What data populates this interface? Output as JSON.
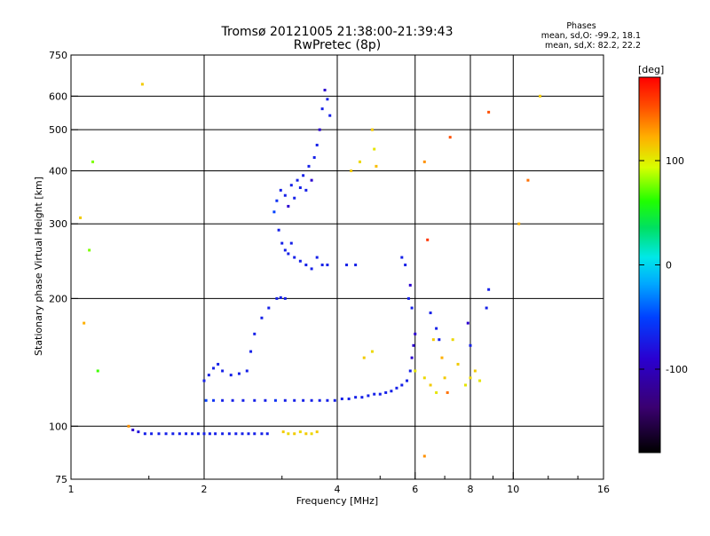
{
  "chart_data": {
    "type": "scatter",
    "title": "Tromsø 20121005 21:38:00-21:39:43",
    "subtitle": "RwPretec (8p)",
    "xlabel": "Frequency [MHz]",
    "ylabel": "Stationary phase Virtual Height [km]",
    "x_scale": "log",
    "y_scale": "log",
    "xlim": [
      1,
      16
    ],
    "ylim": [
      75,
      750
    ],
    "x_ticks": [
      "1",
      "2",
      "4",
      "6",
      "8",
      "10",
      "16"
    ],
    "x_tick_values": [
      1,
      2,
      4,
      6,
      8,
      10,
      16
    ],
    "y_ticks": [
      "75",
      "100",
      "200",
      "300",
      "400",
      "500",
      "600",
      "750"
    ],
    "y_tick_values": [
      75,
      100,
      200,
      300,
      400,
      500,
      600,
      750
    ],
    "grid": true,
    "info_panel": {
      "title": "Phases",
      "line1": "mean, sd,O: -99.2, 18.1",
      "line2": "mean, sd,X: 82.2, 22.2"
    },
    "colorbar": {
      "label": "[deg]",
      "min": -180,
      "max": 180,
      "ticks": [
        "100",
        "0",
        "-100"
      ],
      "tick_values": [
        100,
        0,
        -100
      ],
      "colormap": "rainbow: black-purple-blue-cyan-green-yellow-orange-red"
    },
    "series": [
      {
        "mode": "O",
        "points": [
          [
            1.38,
            98,
            -110
          ],
          [
            1.42,
            97,
            -105
          ],
          [
            1.47,
            96,
            -100
          ],
          [
            1.52,
            96,
            -100
          ],
          [
            1.58,
            96,
            -100
          ],
          [
            1.64,
            96,
            -100
          ],
          [
            1.7,
            96,
            -100
          ],
          [
            1.76,
            96,
            -100
          ],
          [
            1.82,
            96,
            -100
          ],
          [
            1.88,
            96,
            -100
          ],
          [
            1.94,
            96,
            -100
          ],
          [
            2.0,
            96,
            -100
          ],
          [
            2.06,
            96,
            -100
          ],
          [
            2.12,
            96,
            -100
          ],
          [
            2.2,
            96,
            -100
          ],
          [
            2.28,
            96,
            -100
          ],
          [
            2.36,
            96,
            -100
          ],
          [
            2.44,
            96,
            -100
          ],
          [
            2.52,
            96,
            -100
          ],
          [
            2.6,
            96,
            -100
          ],
          [
            2.7,
            96,
            -100
          ],
          [
            2.78,
            96,
            -100
          ],
          [
            2.02,
            115,
            -90
          ],
          [
            2.1,
            115,
            -95
          ],
          [
            2.2,
            115,
            -100
          ],
          [
            2.32,
            115,
            -100
          ],
          [
            2.45,
            115,
            -100
          ],
          [
            2.6,
            115,
            -100
          ],
          [
            2.75,
            115,
            -100
          ],
          [
            2.9,
            115,
            -95
          ],
          [
            3.05,
            115,
            -100
          ],
          [
            3.2,
            115,
            -100
          ],
          [
            3.35,
            115,
            -100
          ],
          [
            3.5,
            115,
            -100
          ],
          [
            3.65,
            115,
            -100
          ],
          [
            3.8,
            115,
            -100
          ],
          [
            3.95,
            115,
            -100
          ],
          [
            4.1,
            116,
            -100
          ],
          [
            4.25,
            116,
            -100
          ],
          [
            4.4,
            117,
            -100
          ],
          [
            4.55,
            117,
            -100
          ],
          [
            4.7,
            118,
            -100
          ],
          [
            4.85,
            119,
            -100
          ],
          [
            5.0,
            119,
            -100
          ],
          [
            5.15,
            120,
            -100
          ],
          [
            5.3,
            121,
            -100
          ],
          [
            5.45,
            123,
            -100
          ],
          [
            5.6,
            125,
            -100
          ],
          [
            5.75,
            128,
            -100
          ],
          [
            5.85,
            135,
            -100
          ],
          [
            5.9,
            145,
            -110
          ],
          [
            5.95,
            155,
            -110
          ],
          [
            6.0,
            165,
            -110
          ],
          [
            2.0,
            128,
            -100
          ],
          [
            2.05,
            132,
            -100
          ],
          [
            2.1,
            137,
            -100
          ],
          [
            2.15,
            140,
            -100
          ],
          [
            2.2,
            135,
            -100
          ],
          [
            2.3,
            132,
            -100
          ],
          [
            2.4,
            133,
            -100
          ],
          [
            2.5,
            135,
            -100
          ],
          [
            2.55,
            150,
            -100
          ],
          [
            2.6,
            165,
            -100
          ],
          [
            2.7,
            180,
            -100
          ],
          [
            2.8,
            190,
            -100
          ],
          [
            2.92,
            200,
            -100
          ],
          [
            2.98,
            201,
            -100
          ],
          [
            3.05,
            200,
            -100
          ],
          [
            2.88,
            320,
            -90
          ],
          [
            2.92,
            340,
            -95
          ],
          [
            2.98,
            360,
            -100
          ],
          [
            3.05,
            350,
            -100
          ],
          [
            3.1,
            330,
            -110
          ],
          [
            3.15,
            370,
            -100
          ],
          [
            3.2,
            345,
            -100
          ],
          [
            3.25,
            380,
            -100
          ],
          [
            3.3,
            365,
            -100
          ],
          [
            3.35,
            390,
            -100
          ],
          [
            3.4,
            360,
            -100
          ],
          [
            3.45,
            410,
            -100
          ],
          [
            3.5,
            380,
            -110
          ],
          [
            3.55,
            430,
            -100
          ],
          [
            3.6,
            460,
            -100
          ],
          [
            3.65,
            500,
            -110
          ],
          [
            3.7,
            560,
            -100
          ],
          [
            3.75,
            620,
            -110
          ],
          [
            3.8,
            590,
            -100
          ],
          [
            3.85,
            540,
            -100
          ],
          [
            2.95,
            290,
            -100
          ],
          [
            3.0,
            270,
            -100
          ],
          [
            3.05,
            260,
            -100
          ],
          [
            3.1,
            255,
            -100
          ],
          [
            3.15,
            270,
            -100
          ],
          [
            3.2,
            250,
            -100
          ],
          [
            3.3,
            245,
            -100
          ],
          [
            3.4,
            240,
            -100
          ],
          [
            3.5,
            235,
            -100
          ],
          [
            3.6,
            250,
            -100
          ],
          [
            3.7,
            240,
            -100
          ],
          [
            3.8,
            240,
            -100
          ],
          [
            4.2,
            240,
            -100
          ],
          [
            4.4,
            240,
            -100
          ],
          [
            5.6,
            250,
            -100
          ],
          [
            5.7,
            240,
            -100
          ],
          [
            5.8,
            200,
            -100
          ],
          [
            5.85,
            215,
            -110
          ],
          [
            5.9,
            190,
            -100
          ],
          [
            6.5,
            185,
            -100
          ],
          [
            6.7,
            170,
            -100
          ],
          [
            6.8,
            160,
            -100
          ],
          [
            7.9,
            175,
            -110
          ],
          [
            8.0,
            155,
            -100
          ],
          [
            8.7,
            190,
            -100
          ],
          [
            8.8,
            210,
            -100
          ]
        ]
      },
      {
        "mode": "X",
        "points": [
          [
            3.02,
            97,
            110
          ],
          [
            3.1,
            96,
            105
          ],
          [
            3.2,
            96,
            110
          ],
          [
            3.3,
            97,
            105
          ],
          [
            3.4,
            96,
            110
          ],
          [
            3.5,
            96,
            105
          ],
          [
            3.6,
            97,
            110
          ],
          [
            4.3,
            400,
            110
          ],
          [
            4.5,
            420,
            105
          ],
          [
            4.8,
            500,
            110
          ],
          [
            4.85,
            450,
            100
          ],
          [
            4.9,
            410,
            115
          ],
          [
            4.6,
            145,
            110
          ],
          [
            4.8,
            150,
            105
          ],
          [
            6.0,
            135,
            100
          ],
          [
            6.3,
            130,
            105
          ],
          [
            6.5,
            125,
            110
          ],
          [
            6.7,
            120,
            100
          ],
          [
            7.0,
            130,
            110
          ],
          [
            7.3,
            160,
            105
          ],
          [
            7.5,
            140,
            110
          ],
          [
            7.8,
            125,
            100
          ],
          [
            8.0,
            130,
            105
          ],
          [
            8.2,
            135,
            110
          ],
          [
            8.4,
            128,
            100
          ],
          [
            6.9,
            145,
            120
          ],
          [
            6.6,
            160,
            110
          ],
          [
            7.1,
            120,
            140
          ],
          [
            1.05,
            310,
            110
          ],
          [
            1.07,
            175,
            120
          ],
          [
            1.1,
            260,
            60
          ],
          [
            1.12,
            420,
            60
          ],
          [
            1.15,
            135,
            40
          ],
          [
            1.45,
            640,
            110
          ],
          [
            1.35,
            100,
            130
          ],
          [
            6.3,
            420,
            130
          ],
          [
            7.2,
            480,
            150
          ],
          [
            8.8,
            550,
            150
          ],
          [
            10.3,
            300,
            120
          ],
          [
            11.5,
            600,
            110
          ],
          [
            10.8,
            380,
            140
          ],
          [
            6.4,
            275,
            160
          ],
          [
            6.3,
            85,
            130
          ]
        ]
      }
    ]
  }
}
